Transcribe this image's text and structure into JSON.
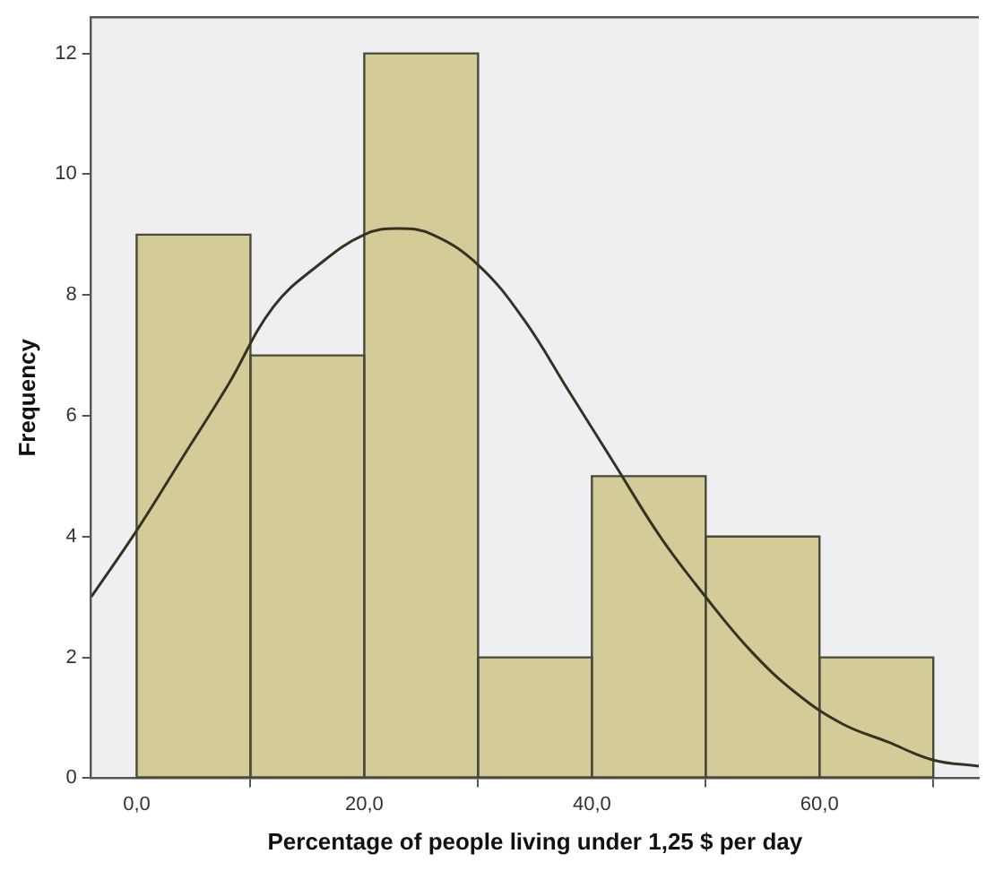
{
  "chart_data": {
    "type": "histogram",
    "xlabel": "Percentage of people living under 1,25 $ per day",
    "ylabel": "Frequency",
    "bins": [
      0,
      10,
      20,
      30,
      40,
      50,
      60,
      70
    ],
    "values": [
      9,
      7,
      12,
      2,
      5,
      4,
      2
    ],
    "color": "#d3cc98",
    "series": [
      {
        "type": "line",
        "color": "#333322",
        "x": [
          -4,
          0,
          4,
          8,
          12,
          16,
          20,
          23,
          26,
          30,
          34,
          38,
          42,
          46,
          50,
          54,
          58,
          62,
          66,
          70,
          74
        ],
        "values": [
          3.0,
          4.1,
          5.3,
          6.5,
          7.8,
          8.5,
          9.0,
          9.1,
          9.0,
          8.5,
          7.6,
          6.4,
          5.2,
          4.0,
          3.0,
          2.1,
          1.4,
          0.9,
          0.6,
          0.3,
          0.2
        ]
      }
    ],
    "xlim": [
      -4,
      74
    ],
    "ylim": [
      0,
      12.6
    ],
    "xticks": [
      {
        "value": 0,
        "label": "0,0"
      },
      {
        "value": 20,
        "label": "20,0"
      },
      {
        "value": 40,
        "label": "40,0"
      },
      {
        "value": 60,
        "label": "60,0"
      }
    ],
    "yticks": [
      0,
      2,
      4,
      6,
      8,
      10,
      12
    ],
    "grid": false,
    "legend": false,
    "marker": "none",
    "line_style": "solid"
  }
}
